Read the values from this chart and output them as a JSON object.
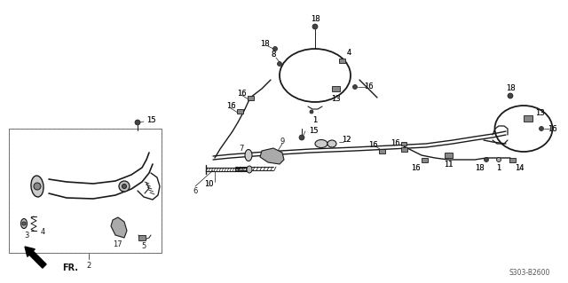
{
  "bg_color": "#ffffff",
  "diagram_code": "S303-B2600",
  "fig_width": 6.4,
  "fig_height": 3.19,
  "dpi": 100,
  "line_color": "#1a1a1a",
  "gray_fill": "#888888",
  "dark_fill": "#444444"
}
